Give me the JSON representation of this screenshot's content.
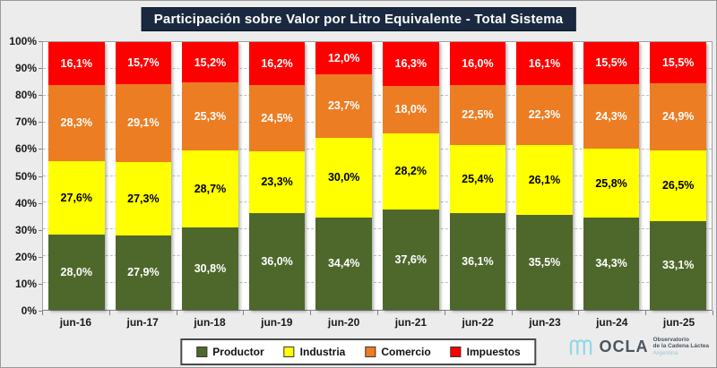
{
  "title": {
    "text": "Participación sobre Valor por Litro Equivalente - Total Sistema"
  },
  "colors": {
    "title_bg": "#1a2940",
    "plot_bg": "#ffffff",
    "grid": "#bfbfbf",
    "page_bg": "#ececec"
  },
  "chart_data": {
    "type": "bar",
    "stacked": true,
    "title": "Participación sobre Valor por Litro Equivalente - Total Sistema",
    "categories": [
      "jun-16",
      "jun-17",
      "jun-18",
      "jun-19",
      "jun-20",
      "jun-21",
      "jun-22",
      "jun-23",
      "jun-24",
      "jun-25"
    ],
    "series": [
      {
        "name": "Productor",
        "color": "#4e682c",
        "label_color": "#ffffff",
        "values": [
          28.0,
          27.9,
          30.8,
          36.0,
          34.4,
          37.6,
          36.1,
          35.5,
          34.3,
          33.1
        ]
      },
      {
        "name": "Industria",
        "color": "#ffff00",
        "label_color": "#000000",
        "values": [
          27.6,
          27.3,
          28.7,
          23.3,
          30.0,
          28.2,
          25.4,
          26.1,
          25.8,
          26.5
        ]
      },
      {
        "name": "Comercio",
        "color": "#ed7d23",
        "label_color": "#ffffff",
        "values": [
          28.3,
          29.1,
          25.3,
          24.5,
          23.7,
          18.0,
          22.5,
          22.3,
          24.3,
          24.9
        ]
      },
      {
        "name": "Impuestos",
        "color": "#fe0000",
        "label_color": "#ffffff",
        "values": [
          16.1,
          15.7,
          15.2,
          16.2,
          12.0,
          16.3,
          16.0,
          16.1,
          15.5,
          15.5
        ]
      }
    ],
    "xlabel": "",
    "ylabel": "",
    "ylim": [
      0,
      100
    ],
    "y_ticks": [
      "0%",
      "10%",
      "20%",
      "30%",
      "40%",
      "50%",
      "60%",
      "70%",
      "80%",
      "90%",
      "100%"
    ],
    "grid": true,
    "grid_style": "dashed",
    "legend_position": "bottom",
    "legend_entries": [
      "Productor",
      "Industria",
      "Comercio",
      "Impuestos"
    ],
    "value_decimal_separator": ",",
    "value_suffix": "%"
  },
  "logo": {
    "word": "OCLA",
    "line1": "Observatorio",
    "line2": "de la Cadena Láctea",
    "line3": "Argentina"
  }
}
